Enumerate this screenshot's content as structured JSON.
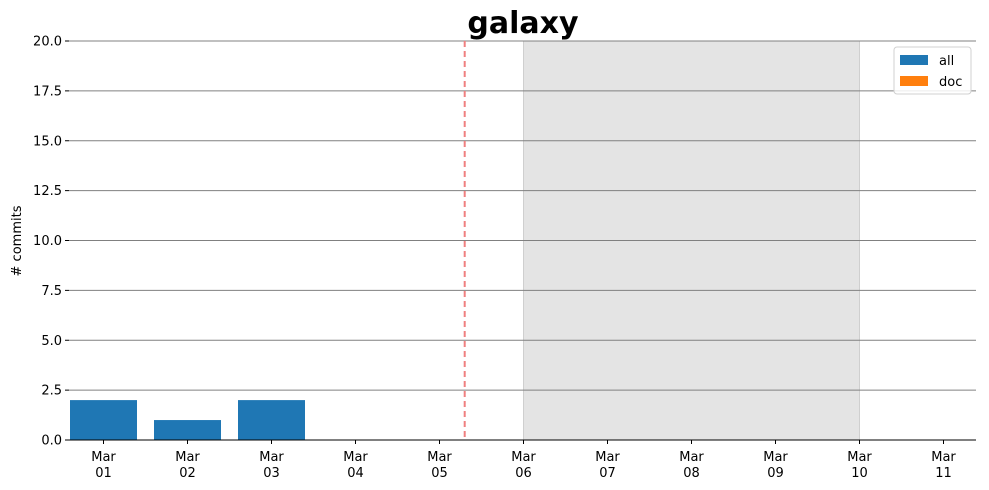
{
  "chart_data": {
    "type": "bar",
    "title": "galaxy",
    "xlabel": "",
    "ylabel": "# commits",
    "ylim": [
      0,
      20
    ],
    "yticks": [
      "0.0",
      "2.5",
      "5.0",
      "7.5",
      "10.0",
      "12.5",
      "15.0",
      "17.5",
      "20.0"
    ],
    "categories": [
      {
        "month": "Mar",
        "day": "01"
      },
      {
        "month": "Mar",
        "day": "02"
      },
      {
        "month": "Mar",
        "day": "03"
      },
      {
        "month": "Mar",
        "day": "04"
      },
      {
        "month": "Mar",
        "day": "05"
      },
      {
        "month": "Mar",
        "day": "06"
      },
      {
        "month": "Mar",
        "day": "07"
      },
      {
        "month": "Mar",
        "day": "08"
      },
      {
        "month": "Mar",
        "day": "09"
      },
      {
        "month": "Mar",
        "day": "10"
      },
      {
        "month": "Mar",
        "day": "11"
      }
    ],
    "series": [
      {
        "name": "all",
        "color": "#1f77b4",
        "values": [
          2,
          1,
          2,
          0,
          0,
          0,
          0,
          0,
          0,
          0,
          0
        ]
      },
      {
        "name": "doc",
        "color": "#ff7f0e",
        "values": [
          0,
          0,
          0,
          0,
          0,
          0,
          0,
          0,
          0,
          0,
          0
        ]
      }
    ],
    "shaded_region": {
      "from_index": 5,
      "to_index": 9,
      "color": "#e4e4e4"
    },
    "reference_line": {
      "at_index": 4.3,
      "color": "#f08080",
      "style": "dashed"
    },
    "grid": "horizontal",
    "legend_position": "top-right"
  }
}
